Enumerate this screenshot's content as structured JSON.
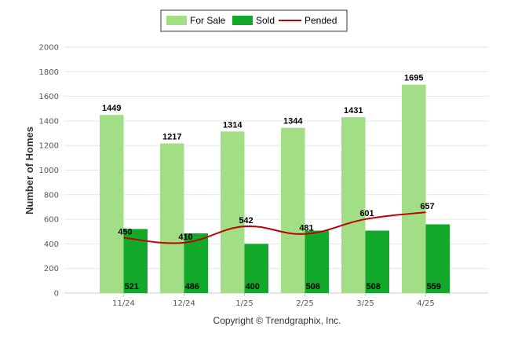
{
  "chart_data": {
    "type": "bar",
    "categories": [
      "11/24",
      "12/24",
      "1/25",
      "2/25",
      "3/25",
      "4/25"
    ],
    "series": [
      {
        "name": "For Sale",
        "kind": "bar",
        "color": "#a2de86",
        "values": [
          1449,
          1217,
          1314,
          1344,
          1431,
          1695
        ]
      },
      {
        "name": "Sold",
        "kind": "bar",
        "color": "#12a829",
        "values": [
          521,
          486,
          400,
          508,
          508,
          559
        ]
      },
      {
        "name": "Pended",
        "kind": "line",
        "color": "#c00000",
        "values": [
          450,
          410,
          542,
          481,
          601,
          657
        ]
      }
    ],
    "ylabel": "Number of Homes",
    "ylim": [
      0,
      2000
    ],
    "yticks": [
      0,
      200,
      400,
      600,
      800,
      1000,
      1200,
      1400,
      1600,
      1800,
      2000
    ],
    "grid": true,
    "legend_position": "top-center"
  },
  "footer": {
    "copyright": "Copyright © Trendgraphix, Inc."
  }
}
